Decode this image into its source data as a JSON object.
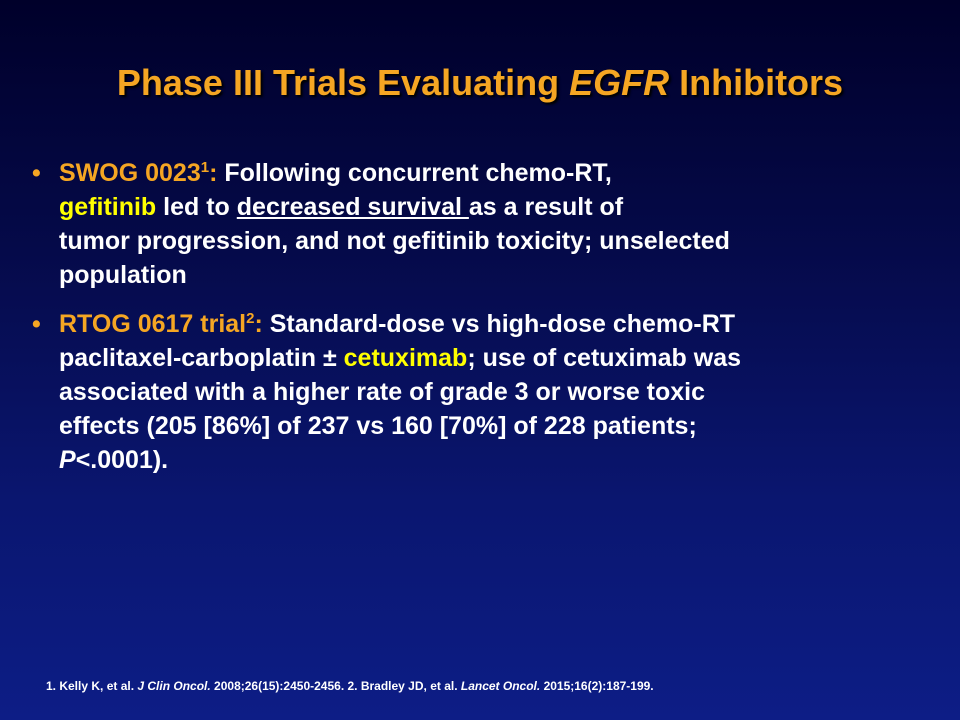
{
  "title": {
    "part1": "Phase III Trials Evaluating ",
    "emph": "EGFR",
    "part2": " Inhibitors"
  },
  "bullet_glyph": "•",
  "colors": {
    "title": "#f5a623",
    "highlight": "#ffff00",
    "text": "#ffffff"
  },
  "bullets": [
    {
      "lead": "SWOG 0023",
      "sup": "1",
      "colon": ":",
      "line1": " Following concurrent chemo-RT,",
      "drug": "gefitinib",
      "t2": " led to ",
      "underlined": "decreased survival ",
      "t3": "as a result of",
      "line3": "tumor progression, and not gefitinib toxicity; unselected",
      "line4": "population"
    },
    {
      "lead": "RTOG 0617 trial",
      "sup": "2",
      "colon": ":",
      "line1": " Standard-dose vs high-dose chemo-RT",
      "t2": "paclitaxel-carboplatin ± ",
      "drug": "cetuximab",
      "t3": "; use of cetuximab was",
      "line3": "associated with a higher rate of grade 3 or worse toxic",
      "line4": "effects (205 [86%] of 237 vs 160 [70%] of 228 patients;",
      "p_ital": "P",
      "p_rest": "<.0001)."
    }
  ],
  "references": {
    "r1_pre": "1. Kelly K, et al. ",
    "r1_journal": "J Clin Oncol.",
    "r1_post": " 2008;26(15):2450-2456. 2. Bradley JD, et al. ",
    "r2_journal": "Lancet Oncol.",
    "r2_post": " 2015;16(2):187-199."
  }
}
